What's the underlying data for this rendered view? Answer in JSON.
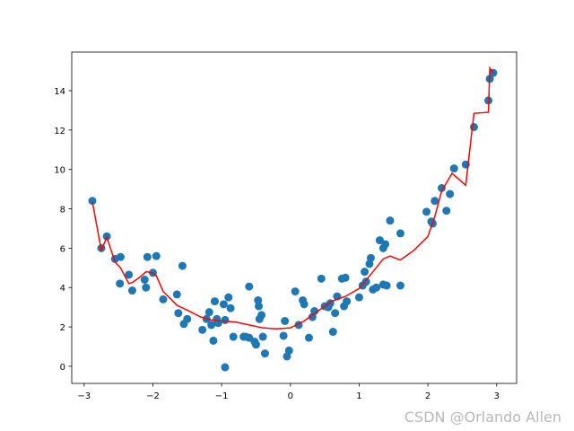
{
  "chart_data": {
    "type": "scatter",
    "watermark": "CSDN @Orlando Allen",
    "xlim": [
      -3.18,
      3.29
    ],
    "ylim": [
      -0.87,
      15.96
    ],
    "xticks": [
      {
        "value": -3,
        "label": "−3"
      },
      {
        "value": -2,
        "label": "−2"
      },
      {
        "value": -1,
        "label": "−1"
      },
      0,
      1,
      2,
      3
    ],
    "yticks": [
      0,
      2,
      4,
      6,
      8,
      10,
      12,
      14
    ],
    "series": [
      {
        "type": "scatter",
        "color": "#1f77b4",
        "x": [
          -2.88,
          -2.75,
          -2.67,
          -2.55,
          -2.47,
          -2.48,
          -2.35,
          -2.3,
          -2.12,
          -2.1,
          -2.08,
          -2.0,
          -1.95,
          -1.85,
          -1.65,
          -1.63,
          -1.57,
          -1.55,
          -1.5,
          -1.28,
          -1.22,
          -1.18,
          -1.15,
          -1.12,
          -1.1,
          -1.07,
          -1.05,
          -0.97,
          -0.95,
          -0.95,
          -0.9,
          -0.87,
          -0.83,
          -0.68,
          -0.65,
          -0.6,
          -0.6,
          -0.52,
          -0.5,
          -0.47,
          -0.46,
          -0.45,
          -0.42,
          -0.4,
          -0.37,
          -0.1,
          -0.08,
          -0.05,
          -0.02,
          0.07,
          0.12,
          0.18,
          0.2,
          0.27,
          0.32,
          0.35,
          0.45,
          0.5,
          0.55,
          0.58,
          0.62,
          0.65,
          0.68,
          0.75,
          0.78,
          0.8,
          0.82,
          1.0,
          1.05,
          1.08,
          1.1,
          1.15,
          1.17,
          1.2,
          1.25,
          1.3,
          1.35,
          1.35,
          1.38,
          1.4,
          1.45,
          1.6,
          1.6,
          1.98,
          2.05,
          2.07,
          2.1,
          2.2,
          2.27,
          2.32,
          2.38,
          2.55,
          2.67,
          2.88,
          2.9,
          2.95
        ],
        "values": [
          8.4,
          6.0,
          6.6,
          5.45,
          5.55,
          4.2,
          4.65,
          3.85,
          4.4,
          4.0,
          5.55,
          4.75,
          5.6,
          3.4,
          3.65,
          2.7,
          5.1,
          2.15,
          2.4,
          1.85,
          2.4,
          2.75,
          2.1,
          1.3,
          3.3,
          2.4,
          2.2,
          3.15,
          2.35,
          -0.05,
          3.5,
          2.95,
          1.5,
          1.5,
          1.5,
          1.45,
          4.05,
          1.25,
          1.1,
          3.35,
          3.05,
          2.4,
          2.6,
          1.5,
          0.65,
          1.55,
          2.3,
          0.5,
          0.8,
          3.8,
          2.1,
          3.35,
          3.15,
          1.45,
          2.5,
          2.8,
          4.45,
          3.05,
          3.0,
          3.2,
          1.75,
          2.7,
          3.55,
          4.45,
          3.05,
          4.5,
          3.3,
          3.5,
          4.1,
          4.8,
          4.3,
          5.2,
          5.5,
          3.9,
          4.0,
          6.4,
          6.0,
          4.15,
          6.2,
          4.1,
          7.4,
          6.75,
          4.1,
          7.85,
          7.35,
          7.25,
          8.4,
          9.05,
          7.9,
          8.75,
          10.05,
          10.25,
          12.15,
          13.5,
          14.6,
          14.9
        ]
      },
      {
        "type": "line",
        "color": "#ff0000",
        "x": [
          -2.88,
          -2.75,
          -2.67,
          -2.55,
          -2.47,
          -2.35,
          -2.3,
          -2.2,
          -2.1,
          -2.0,
          -1.95,
          -1.85,
          -1.65,
          -1.5,
          -1.3,
          -1.15,
          -1.0,
          -0.8,
          -0.6,
          -0.4,
          -0.2,
          0.0,
          0.2,
          0.4,
          0.6,
          0.8,
          1.0,
          1.2,
          1.35,
          1.45,
          1.6,
          1.8,
          2.0,
          2.1,
          2.2,
          2.35,
          2.55,
          2.67,
          2.88,
          2.9,
          2.95
        ],
        "values": [
          8.35,
          5.9,
          6.55,
          5.3,
          5.0,
          4.2,
          4.25,
          4.5,
          4.8,
          4.75,
          4.6,
          3.8,
          3.1,
          2.85,
          2.5,
          2.35,
          2.3,
          2.25,
          2.1,
          1.95,
          1.9,
          1.95,
          2.3,
          2.8,
          3.3,
          3.55,
          3.95,
          4.8,
          5.45,
          5.6,
          5.4,
          5.9,
          6.6,
          7.6,
          8.9,
          9.8,
          9.2,
          12.85,
          12.9,
          15.15,
          14.9
        ]
      }
    ]
  }
}
